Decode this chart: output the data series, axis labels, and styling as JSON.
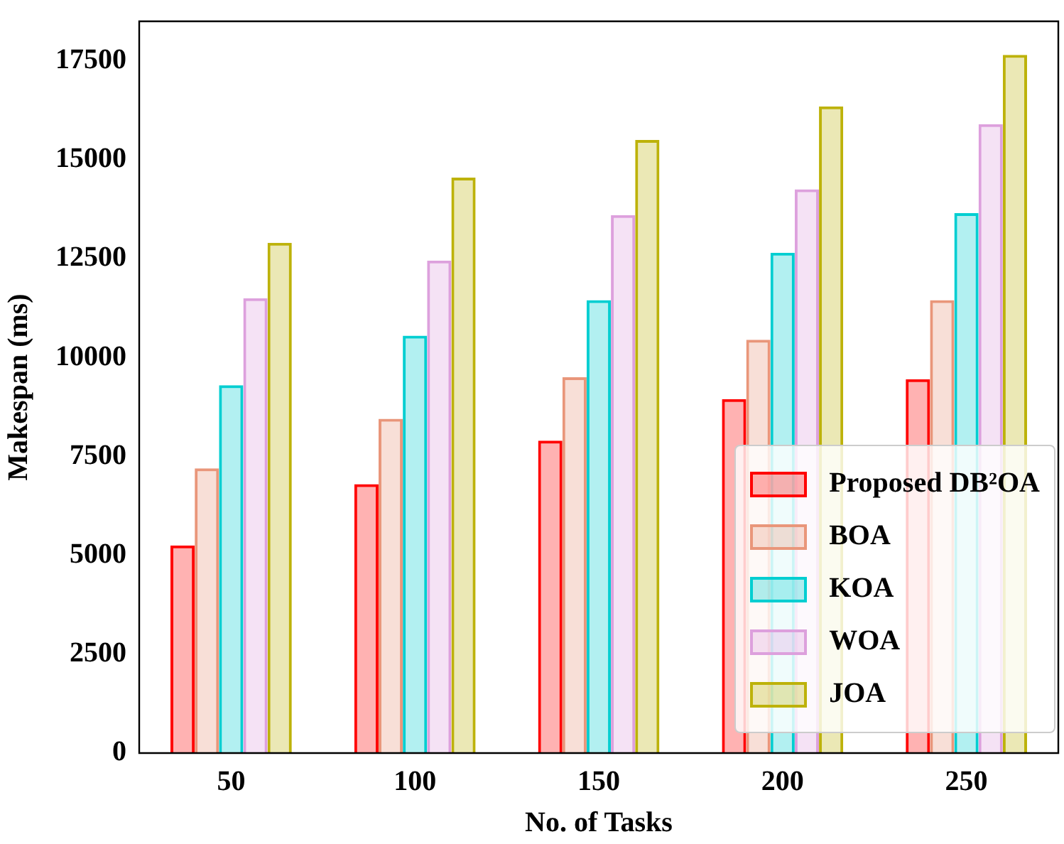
{
  "chart_data": {
    "type": "bar",
    "xlabel": "No. of Tasks",
    "ylabel": "Makespan (ms)",
    "categories": [
      "50",
      "100",
      "150",
      "200",
      "250"
    ],
    "series": [
      {
        "name": "Proposed DB²OA",
        "color": "#ff0000",
        "values": [
          5250,
          6800,
          7900,
          8950,
          9450
        ]
      },
      {
        "name": "BOA",
        "color": "#e9967a",
        "values": [
          7200,
          8450,
          9500,
          10450,
          11450
        ]
      },
      {
        "name": "KOA",
        "color": "#00ced1",
        "values": [
          9300,
          10550,
          11450,
          12650,
          13650
        ]
      },
      {
        "name": "WOA",
        "color": "#dda0dd",
        "values": [
          11500,
          12450,
          13600,
          14250,
          15900
        ]
      },
      {
        "name": "JOA",
        "color": "#bdb20a",
        "values": [
          12900,
          14550,
          15500,
          16350,
          17650
        ]
      }
    ],
    "ylim": [
      0,
      18500
    ],
    "yticks": [
      0,
      2500,
      5000,
      7500,
      10000,
      12500,
      15000,
      17500
    ],
    "grid": false,
    "legend": "bottom right"
  }
}
